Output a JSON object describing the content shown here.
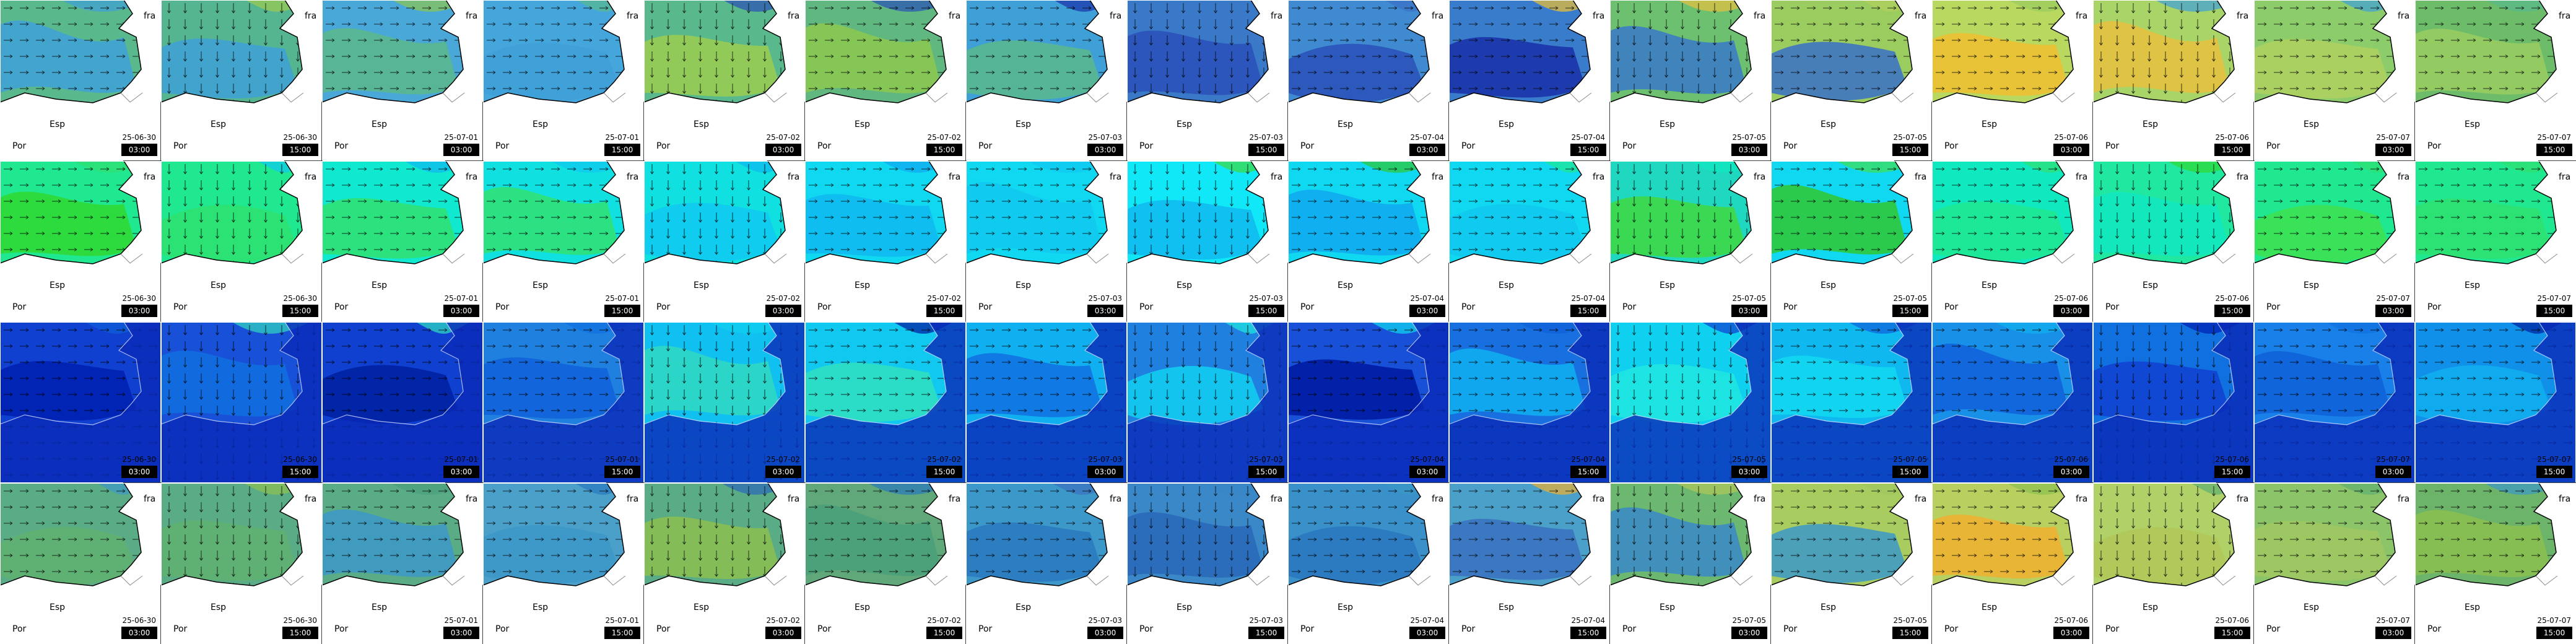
{
  "columns": [
    {
      "date": "25-06-30",
      "time": "03:00"
    },
    {
      "date": "25-06-30",
      "time": "15:00"
    },
    {
      "date": "25-07-01",
      "time": "03:00"
    },
    {
      "date": "25-07-01",
      "time": "15:00"
    },
    {
      "date": "25-07-02",
      "time": "03:00"
    },
    {
      "date": "25-07-02",
      "time": "15:00"
    },
    {
      "date": "25-07-03",
      "time": "03:00"
    },
    {
      "date": "25-07-03",
      "time": "15:00"
    },
    {
      "date": "25-07-04",
      "time": "03:00"
    },
    {
      "date": "25-07-04",
      "time": "15:00"
    },
    {
      "date": "25-07-05",
      "time": "03:00"
    },
    {
      "date": "25-07-05",
      "time": "15:00"
    },
    {
      "date": "25-07-06",
      "time": "03:00"
    },
    {
      "date": "25-07-06",
      "time": "15:00"
    },
    {
      "date": "25-07-07",
      "time": "03:00"
    },
    {
      "date": "25-07-07",
      "time": "15:00"
    }
  ],
  "map_labels": [
    "fra",
    "Esp",
    "Por"
  ],
  "rows": [
    {
      "land": true,
      "base": [
        "#5ab98c",
        "#55b590",
        "#4aa8d8",
        "#45a6dc",
        "#5ab98c",
        "#60b880",
        "#3fa0d8",
        "#3a78c8",
        "#3f8ad0",
        "#3a7ccc",
        "#6cc070",
        "#9acc60",
        "#b8d860",
        "#a8d468",
        "#8ccc6a",
        "#6cbc6a"
      ],
      "accent": [
        "#3fa0d8",
        "#3fa0d8",
        "#5ab98c",
        "#3fa0d8",
        "#9ccc50",
        "#8cc850",
        "#5ab98c",
        "#2a50b8",
        "#2a50b8",
        "#1a30a8",
        "#3a78c8",
        "#3a70c8",
        "#f0c030",
        "#e8c040",
        "#b0d060",
        "#9acc60"
      ]
    },
    {
      "land": true,
      "base": [
        "#20e890",
        "#20e890",
        "#10e8d0",
        "#10e0e0",
        "#10e0e0",
        "#10d8f0",
        "#10d8f0",
        "#10e8f8",
        "#10d8f0",
        "#10d8f0",
        "#20d8c0",
        "#10d8f0",
        "#10e8c0",
        "#20e8a0",
        "#20e890",
        "#20e890"
      ],
      "accent": [
        "#30d830",
        "#30e070",
        "#30e070",
        "#30e070",
        "#10c8f0",
        "#10b8f0",
        "#10c8f0",
        "#10b8f0",
        "#10a8f0",
        "#10c8f0",
        "#40d840",
        "#30c830",
        "#20e890",
        "#10e8c0",
        "#40e050",
        "#30e070"
      ]
    },
    {
      "land": false,
      "base": [
        "#1040d0",
        "#1850d8",
        "#1040d0",
        "#2080e0",
        "#10c0f0",
        "#10c8f0",
        "#10b0f0",
        "#2080e0",
        "#1850d8",
        "#1870e0",
        "#10d0f0",
        "#10b8f0",
        "#1890e8",
        "#1070e0",
        "#1880e8",
        "#1090e8"
      ],
      "accent": [
        "#0020b0",
        "#1070e0",
        "#0020a0",
        "#1060d8",
        "#30d8c0",
        "#30e0c0",
        "#1070e0",
        "#10d0f0",
        "#0018a0",
        "#10b0f0",
        "#20e8e0",
        "#10d8f0",
        "#1060d8",
        "#1040d0",
        "#1060d8",
        "#10b0f0"
      ]
    },
    {
      "land": true,
      "base": [
        "#5aac86",
        "#5aac86",
        "#5aac86",
        "#4aa0c8",
        "#5aac86",
        "#60a87a",
        "#3c98c8",
        "#3a88c8",
        "#3a90c8",
        "#4aa0c8",
        "#6cb870",
        "#a8cc60",
        "#b8d060",
        "#b0d068",
        "#8cc46a",
        "#6cb46a"
      ],
      "accent": [
        "#60b070",
        "#60b070",
        "#3c98c8",
        "#3c98c8",
        "#8cc050",
        "#4aa07a",
        "#2a78c0",
        "#2a68b8",
        "#2a78c0",
        "#3a70c0",
        "#3a88c8",
        "#3c98c8",
        "#f0b030",
        "#b0c858",
        "#a0c860",
        "#8cc050"
      ]
    }
  ]
}
